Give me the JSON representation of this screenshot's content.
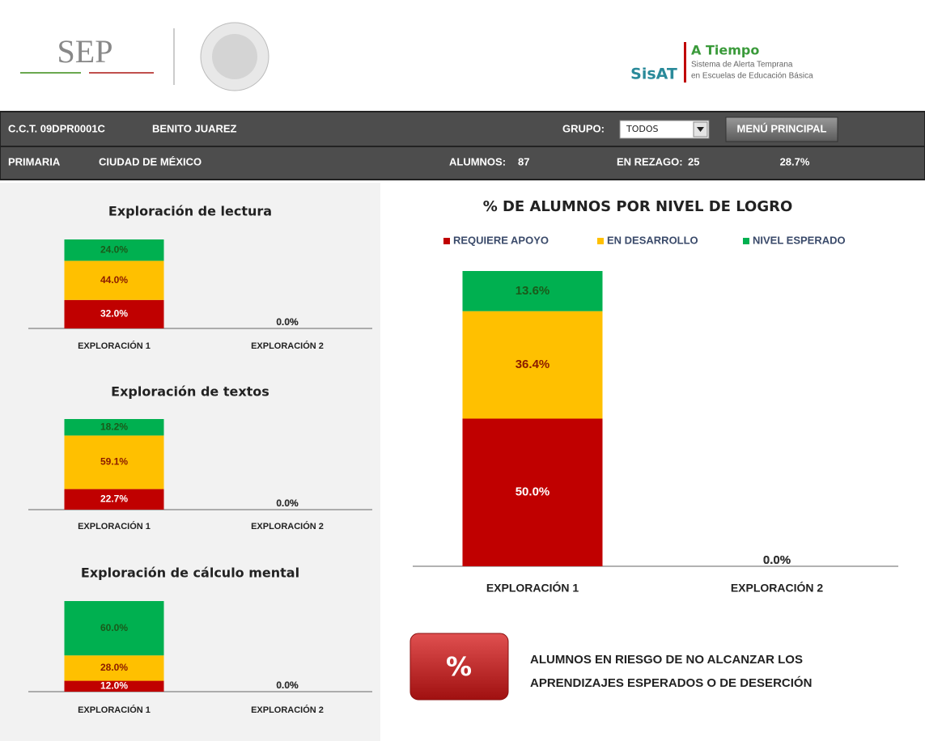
{
  "header": {
    "sep_logo": "SEP",
    "sisat_logo": "SisAT",
    "sisat_title": "A Tiempo",
    "sisat_subtitle": [
      "Sistema de Alerta Temprana",
      "en Escuelas de Educación Básica"
    ]
  },
  "info_bar": {
    "cct": "C.C.T. 09DPR0001C",
    "school": "BENITO JUAREZ",
    "group_label": "GRUPO:",
    "group_value": "TODOS",
    "menu_button": "MENÚ PRINCIPAL",
    "level": "PRIMARIA",
    "city": "CIUDAD DE MÉXICO",
    "students_label": "ALUMNOS:",
    "students": 87,
    "lag_label": "EN REZAGO:",
    "lag": 25,
    "lag_percent": "28.7%"
  },
  "chart_data": [
    {
      "type": "stacked_bar",
      "title": "Exploración de lectura",
      "categories": [
        "EXPLORACIÓN 1",
        "EXPLORACIÓN 2"
      ],
      "ylim": [
        0,
        100
      ],
      "series": [
        {
          "color": "#c00000",
          "values": [
            32,
            0
          ],
          "value_labels": [
            "32.0%",
            "0.0%"
          ]
        },
        {
          "color": "#ffc000",
          "values": [
            44,
            0
          ],
          "value_labels": [
            "44.0%",
            "0.0%"
          ]
        },
        {
          "color": "#00b050",
          "values": [
            24,
            0
          ],
          "value_labels": [
            "24.0%",
            "0.0%"
          ]
        }
      ]
    },
    {
      "type": "stacked_bar",
      "title": "Exploración de textos",
      "categories": [
        "EXPLORACIÓN 1",
        "EXPLORACIÓN 2"
      ],
      "ylim": [
        0,
        100
      ],
      "series": [
        {
          "color": "#c00000",
          "values": [
            22.7,
            0
          ],
          "value_labels": [
            "22.7%",
            "0.0%"
          ]
        },
        {
          "color": "#ffc000",
          "values": [
            59.1,
            0
          ],
          "value_labels": [
            "59.1%",
            "0.0%"
          ]
        },
        {
          "color": "#00b050",
          "values": [
            18.2,
            0
          ],
          "value_labels": [
            "18.2%",
            "0.0%"
          ]
        }
      ]
    },
    {
      "type": "stacked_bar",
      "title": "Exploración de cálculo mental",
      "categories": [
        "EXPLORACIÓN 1",
        "EXPLORACIÓN 2"
      ],
      "ylim": [
        0,
        100
      ],
      "series": [
        {
          "color": "#c00000",
          "values": [
            12,
            0
          ],
          "value_labels": [
            "12.0%",
            "0.0%"
          ]
        },
        {
          "color": "#ffc000",
          "values": [
            28,
            0
          ],
          "value_labels": [
            "28.0%",
            "0.0%"
          ]
        },
        {
          "color": "#00b050",
          "values": [
            60,
            0
          ],
          "value_labels": [
            "60.0%",
            "0.0%"
          ]
        }
      ]
    },
    {
      "type": "stacked_bar",
      "title": "% DE ALUMNOS POR NIVEL DE LOGRO",
      "categories": [
        "EXPLORACIÓN 1",
        "EXPLORACIÓN 2"
      ],
      "ylim": [
        0,
        100
      ],
      "legend": "top",
      "series": [
        {
          "name": "REQUIERE APOYO",
          "color": "#c00000",
          "values": [
            50,
            0
          ],
          "value_labels": [
            "50.0%",
            "0.0%"
          ]
        },
        {
          "name": "EN DESARROLLO",
          "color": "#ffc000",
          "values": [
            36.4,
            0
          ],
          "value_labels": [
            "36.4%",
            "0.0%"
          ]
        },
        {
          "name": "NIVEL ESPERADO",
          "color": "#00b050",
          "values": [
            13.6,
            0
          ],
          "value_labels": [
            "13.6%",
            "0.0%"
          ]
        }
      ]
    }
  ],
  "risk": {
    "button": "%",
    "lines": [
      "ALUMNOS EN RIESGO DE NO ALCANZAR LOS",
      "APRENDIZAJES ESPERADOS O DE DESERCIÓN"
    ]
  }
}
